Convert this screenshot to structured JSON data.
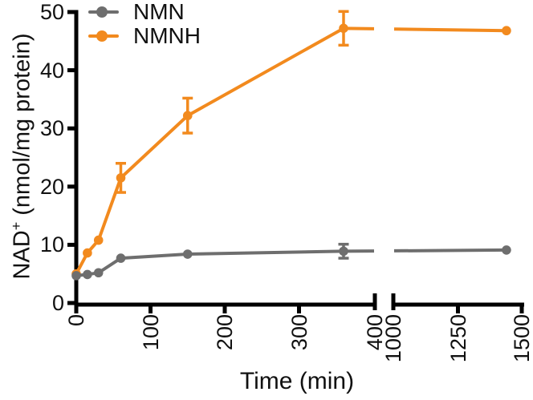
{
  "figure": {
    "background": "#FFFFFF",
    "axis_color": "#000000",
    "text_color": "#111111"
  },
  "chart_data": {
    "type": "line",
    "title": "",
    "xlabel": "Time (min)",
    "ylabel": "NAD+ (nmol/mg protein)",
    "ylabel_parts": {
      "base": "NAD",
      "sup": "+",
      "rest": " (nmol/mg protein)"
    },
    "grid": false,
    "legend": {
      "position": "top-left",
      "entries": [
        "NMN",
        "NMNH"
      ]
    },
    "y_axis": {
      "range": [
        0,
        50
      ],
      "ticks": [
        0,
        10,
        20,
        30,
        40,
        50
      ]
    },
    "x_axis": {
      "break_between": [
        400,
        1000
      ],
      "segments": [
        {
          "range": [
            0,
            400
          ],
          "ticks": [
            0,
            100,
            200,
            300,
            400
          ]
        },
        {
          "range": [
            1000,
            1500
          ],
          "ticks": [
            1000,
            1250,
            1500
          ]
        }
      ]
    },
    "series": [
      {
        "name": "NMN",
        "color": "#6E6E6E",
        "x": [
          0,
          15,
          30,
          60,
          150,
          360,
          1440
        ],
        "y": [
          4.7,
          4.9,
          5.2,
          7.7,
          8.4,
          8.9,
          9.1
        ],
        "yerr": [
          0,
          0,
          0,
          0,
          0,
          1.2,
          0
        ]
      },
      {
        "name": "NMNH",
        "color": "#F28A1E",
        "x": [
          0,
          15,
          30,
          60,
          150,
          360,
          1440
        ],
        "y": [
          5.0,
          8.6,
          10.8,
          21.5,
          32.2,
          47.2,
          46.8
        ],
        "yerr": [
          0,
          0,
          0,
          2.5,
          3.0,
          2.9,
          0
        ]
      }
    ]
  }
}
